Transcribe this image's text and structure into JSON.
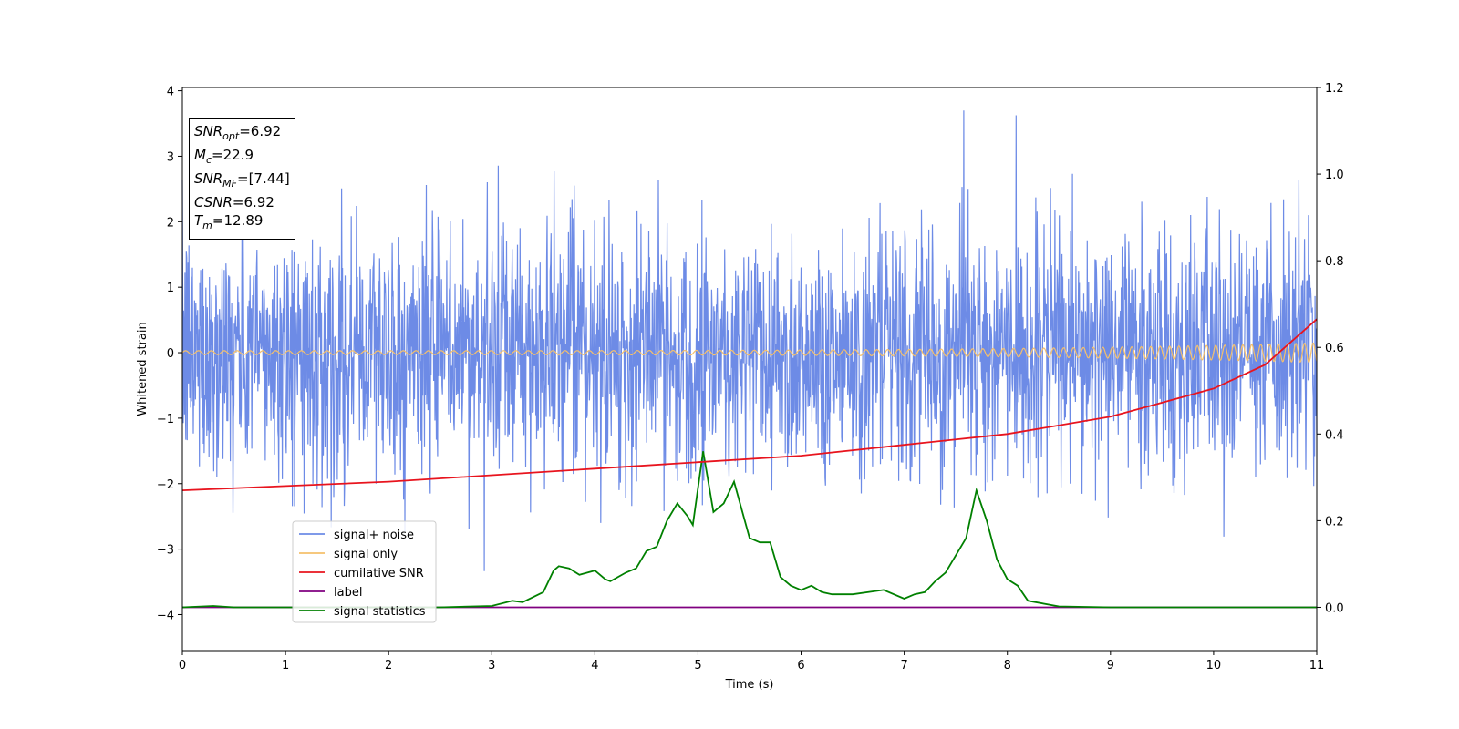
{
  "chart_data": {
    "type": "line",
    "xlabel": "Time (s)",
    "ylabel": "Whitened strain",
    "xlim": [
      0,
      11
    ],
    "ylim": [
      -4.55,
      4.05
    ],
    "y2lim": [
      -0.1,
      1.2
    ],
    "x_ticks": [
      "0",
      "1",
      "2",
      "3",
      "4",
      "5",
      "6",
      "7",
      "8",
      "9",
      "10",
      "11"
    ],
    "y_ticks": [
      "−4",
      "−3",
      "−2",
      "−1",
      "0",
      "1",
      "2",
      "3",
      "4"
    ],
    "y2_ticks": [
      "0.0",
      "0.2",
      "0.4",
      "0.6",
      "0.8",
      "1.0",
      "1.2"
    ],
    "grid": false,
    "legend_position": "lower-left",
    "colors": {
      "noise": "#6d8be6",
      "signal": "#f5c06b",
      "cum_snr": "#e8141e",
      "label": "#800080",
      "stats": "#008000"
    },
    "legend": [
      {
        "name": "signal+ noise",
        "color": "#6d8be6"
      },
      {
        "name": "signal only",
        "color": "#f5c06b"
      },
      {
        "name": "cumilative SNR",
        "color": "#e8141e"
      },
      {
        "name": "label",
        "color": "#800080"
      },
      {
        "name": "signal statistics",
        "color": "#008000"
      }
    ],
    "annotation": {
      "snr_opt": {
        "sym": "SNR",
        "sub": "opt",
        "val": "=6.92"
      },
      "mc": {
        "sym": "M",
        "sub": "c",
        "val": "=22.9"
      },
      "snr_mf": {
        "sym": "SNR",
        "sub": "MF",
        "val": "=[7.44]"
      },
      "csnr": {
        "sym": "CSNR",
        "val": "=6.92"
      },
      "tm": {
        "sym": "T",
        "sub": "m",
        "val": "=12.89"
      }
    },
    "series": [
      {
        "name": "signal+ noise",
        "axis": "left",
        "description_std": 1.0
      },
      {
        "name": "signal only",
        "axis": "left",
        "amplitude_start": 0.03,
        "amplitude_end": 0.15
      },
      {
        "name": "cumilative SNR",
        "axis": "right",
        "x": [
          0,
          1,
          2,
          3,
          4,
          5,
          6,
          7,
          8,
          9,
          10,
          10.5,
          11
        ],
        "y": [
          0.27,
          0.28,
          0.29,
          0.305,
          0.32,
          0.335,
          0.35,
          0.375,
          0.4,
          0.44,
          0.505,
          0.56,
          0.665
        ]
      },
      {
        "name": "label",
        "axis": "right",
        "x": [
          0,
          11
        ],
        "y": [
          0.0,
          0.0
        ]
      },
      {
        "name": "signal statistics",
        "axis": "right",
        "x": [
          0,
          0.3,
          0.5,
          1,
          1.5,
          2,
          2.5,
          3,
          3.2,
          3.3,
          3.5,
          3.6,
          3.65,
          3.75,
          3.85,
          4,
          4.1,
          4.15,
          4.3,
          4.4,
          4.5,
          4.6,
          4.7,
          4.8,
          4.9,
          4.95,
          5.05,
          5.15,
          5.25,
          5.35,
          5.5,
          5.6,
          5.7,
          5.8,
          5.9,
          6.0,
          6.1,
          6.2,
          6.3,
          6.5,
          6.8,
          7.0,
          7.1,
          7.2,
          7.3,
          7.4,
          7.5,
          7.6,
          7.7,
          7.8,
          7.9,
          8.0,
          8.1,
          8.2,
          8.5,
          9,
          9.5,
          10,
          10.5,
          11
        ],
        "y": [
          0,
          0.003,
          0,
          0,
          0,
          0,
          0,
          0.003,
          0.015,
          0.012,
          0.035,
          0.085,
          0.095,
          0.09,
          0.075,
          0.085,
          0.065,
          0.06,
          0.08,
          0.09,
          0.13,
          0.14,
          0.2,
          0.24,
          0.21,
          0.19,
          0.36,
          0.22,
          0.24,
          0.29,
          0.16,
          0.15,
          0.15,
          0.07,
          0.05,
          0.04,
          0.05,
          0.035,
          0.03,
          0.03,
          0.04,
          0.02,
          0.03,
          0.035,
          0.06,
          0.08,
          0.12,
          0.16,
          0.27,
          0.2,
          0.11,
          0.065,
          0.05,
          0.015,
          0.002,
          0,
          0,
          0,
          0,
          0
        ]
      }
    ]
  }
}
